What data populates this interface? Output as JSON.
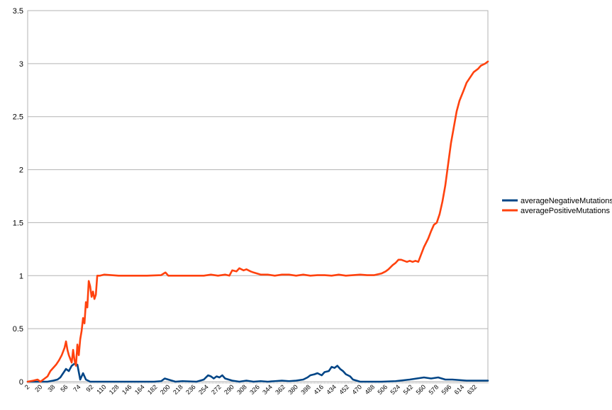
{
  "chart_data": {
    "type": "line",
    "title": "",
    "xlabel": "",
    "ylabel": "",
    "ylim": [
      0,
      3.5
    ],
    "xlim": [
      2,
      650
    ],
    "yticks": [
      "0",
      "0.5",
      "1",
      "1.5",
      "2",
      "2.5",
      "3",
      "3.5"
    ],
    "xticks": [
      "2",
      "20",
      "38",
      "56",
      "74",
      "92",
      "110",
      "128",
      "146",
      "164",
      "182",
      "200",
      "218",
      "236",
      "254",
      "272",
      "290",
      "308",
      "326",
      "344",
      "362",
      "380",
      "398",
      "416",
      "434",
      "452",
      "470",
      "488",
      "506",
      "524",
      "542",
      "560",
      "578",
      "596",
      "614",
      "632"
    ],
    "grid": true,
    "legend_position": "right",
    "series": [
      {
        "name": "averageNegativeMutations",
        "color": "#004586",
        "x": [
          2,
          20,
          30,
          38,
          44,
          48,
          52,
          56,
          60,
          64,
          68,
          72,
          76,
          78,
          80,
          84,
          90,
          100,
          150,
          180,
          190,
          195,
          200,
          210,
          220,
          240,
          250,
          256,
          260,
          264,
          268,
          272,
          276,
          280,
          290,
          300,
          310,
          320,
          330,
          340,
          350,
          360,
          370,
          380,
          390,
          396,
          400,
          406,
          410,
          416,
          420,
          426,
          430,
          434,
          438,
          442,
          446,
          450,
          456,
          460,
          470,
          480,
          500,
          520,
          540,
          550,
          560,
          570,
          580,
          590,
          600,
          620,
          640,
          650
        ],
        "y": [
          0,
          0,
          0,
          0.01,
          0.02,
          0.04,
          0.08,
          0.12,
          0.1,
          0.15,
          0.17,
          0.16,
          0.02,
          0.05,
          0.08,
          0.02,
          0,
          0,
          0,
          0,
          0.005,
          0.03,
          0.02,
          0,
          0.005,
          0,
          0.02,
          0.06,
          0.05,
          0.03,
          0.05,
          0.04,
          0.06,
          0.03,
          0.01,
          0,
          0.01,
          0,
          0.005,
          0,
          0.005,
          0.01,
          0.005,
          0.01,
          0.02,
          0.04,
          0.06,
          0.07,
          0.08,
          0.06,
          0.09,
          0.1,
          0.14,
          0.13,
          0.15,
          0.12,
          0.1,
          0.07,
          0.05,
          0.02,
          0,
          0,
          0,
          0.005,
          0.02,
          0.03,
          0.04,
          0.03,
          0.04,
          0.02,
          0.02,
          0.01,
          0.01,
          0.01
        ]
      },
      {
        "name": "averagePositiveMutations",
        "color": "#ff420e",
        "x": [
          2,
          10,
          16,
          20,
          24,
          30,
          34,
          38,
          42,
          46,
          50,
          54,
          56,
          58,
          60,
          64,
          66,
          68,
          70,
          72,
          74,
          76,
          78,
          80,
          82,
          84,
          86,
          88,
          90,
          92,
          94,
          96,
          98,
          100,
          104,
          110,
          130,
          150,
          170,
          190,
          196,
          200,
          206,
          220,
          240,
          250,
          260,
          270,
          280,
          286,
          290,
          296,
          300,
          306,
          310,
          316,
          320,
          330,
          340,
          350,
          360,
          370,
          380,
          390,
          400,
          410,
          420,
          430,
          440,
          450,
          460,
          470,
          480,
          490,
          500,
          506,
          510,
          516,
          520,
          524,
          528,
          532,
          536,
          540,
          544,
          548,
          552,
          556,
          560,
          566,
          570,
          574,
          578,
          582,
          586,
          590,
          594,
          598,
          602,
          606,
          610,
          616,
          620,
          626,
          630,
          636,
          640,
          646,
          650
        ],
        "y": [
          0,
          0.01,
          0.02,
          0,
          0.02,
          0.05,
          0.1,
          0.13,
          0.16,
          0.2,
          0.25,
          0.32,
          0.38,
          0.3,
          0.25,
          0.18,
          0.3,
          0.2,
          0.15,
          0.35,
          0.25,
          0.4,
          0.48,
          0.6,
          0.55,
          0.75,
          0.7,
          0.95,
          0.9,
          0.8,
          0.85,
          0.78,
          0.82,
          1,
          1,
          1.01,
          1,
          1,
          1,
          1.005,
          1.03,
          1,
          1,
          1,
          1,
          1,
          1.01,
          1,
          1.01,
          1,
          1.05,
          1.04,
          1.07,
          1.05,
          1.06,
          1.04,
          1.03,
          1.01,
          1.01,
          1,
          1.01,
          1.01,
          1,
          1.01,
          1,
          1.005,
          1.005,
          1,
          1.01,
          1,
          1.005,
          1.01,
          1.005,
          1.005,
          1.02,
          1.04,
          1.06,
          1.1,
          1.12,
          1.15,
          1.15,
          1.14,
          1.13,
          1.14,
          1.13,
          1.14,
          1.13,
          1.2,
          1.27,
          1.35,
          1.42,
          1.48,
          1.5,
          1.58,
          1.7,
          1.85,
          2.05,
          2.25,
          2.4,
          2.55,
          2.65,
          2.75,
          2.82,
          2.88,
          2.92,
          2.95,
          2.98,
          3,
          3.02
        ]
      }
    ]
  }
}
